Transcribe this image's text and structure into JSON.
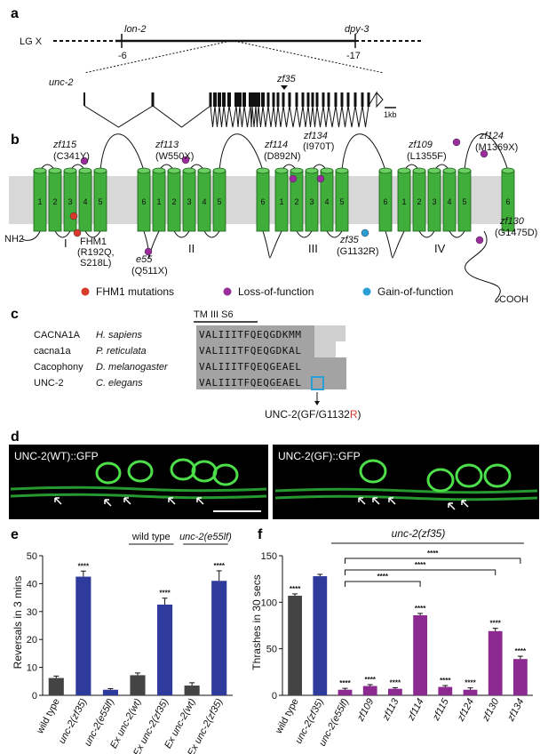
{
  "panels": {
    "a": "a",
    "b": "b",
    "c": "c",
    "d": "d",
    "e": "e",
    "f": "f"
  },
  "panel_a": {
    "chromosome": "LG X",
    "lon2": "lon-2",
    "lon2_pos": "-6",
    "dpy3": "dpy-3",
    "dpy3_pos": "-17",
    "gene": "unc-2",
    "allele": "zf35",
    "scale": "1kb"
  },
  "panel_b": {
    "nh2": "NH2",
    "cooh": "COOH",
    "domains": [
      "I",
      "II",
      "III",
      "IV"
    ],
    "segments": [
      "1",
      "2",
      "3",
      "4",
      "5",
      "6"
    ],
    "fhm1_name": "FHM1",
    "fhm1_mut1": "(R192Q,",
    "fhm1_mut2": "S218L)",
    "mutants": [
      {
        "name": "zf115",
        "aa": "(C341Y)"
      },
      {
        "name": "zf113",
        "aa": "(W550X)"
      },
      {
        "name": "e55",
        "aa": "(Q511X)"
      },
      {
        "name": "zf114",
        "aa": "(D892N)"
      },
      {
        "name": "zf134",
        "aa": "(I970T)"
      },
      {
        "name": "zf35",
        "aa": "(G1132R)"
      },
      {
        "name": "zf109",
        "aa": "(L1355F)"
      },
      {
        "name": "zf124",
        "aa": "(M1369X)"
      },
      {
        "name": "zf130",
        "aa": "(G1475D)"
      }
    ],
    "legend": [
      {
        "label": "FHM1 mutations",
        "color": "#d93a2b"
      },
      {
        "label": "Loss-of-function",
        "color": "#9b2c9e"
      },
      {
        "label": "Gain-of-function",
        "color": "#2a9fd6"
      }
    ]
  },
  "panel_c": {
    "header": "TM III S6",
    "rows": [
      {
        "gene": "CACNA1A",
        "species": "H. sapiens",
        "seq": "VALIIITFQEQGDKMM"
      },
      {
        "gene": "cacna1a",
        "species": "P. reticulata",
        "seq": "VALIIITFQEQGDKAL"
      },
      {
        "gene": "Cacophony",
        "species": "D. melanogaster",
        "seq": "VALIIITFQEQGEAEL"
      },
      {
        "gene": "UNC-2",
        "species": "C. elegans",
        "seq": "VALIIITFQEQGEAEL"
      }
    ],
    "annotation_prefix": "UNC-2(GF/G1132",
    "annotation_red": "R",
    "annotation_suffix": ")"
  },
  "panel_d": {
    "left_label": "UNC-2(WT)::GFP",
    "right_label": "UNC-2(GF)::GFP"
  },
  "chart_data": [
    {
      "type": "bar",
      "panel": "e",
      "ylabel": "Reversals in 3 mins",
      "ylim": [
        0,
        50
      ],
      "yticks": [
        "0",
        "10",
        "20",
        "30",
        "40",
        "50"
      ],
      "categories": [
        "wild type",
        "unc-2(zf35)",
        "unc-2(e55lf)",
        "Ex unc-2(wt)",
        "Ex unc-2(zf35)",
        "Ex unc-2(wt)",
        "Ex unc-2(zf35)"
      ],
      "values": [
        6.2,
        42.5,
        2.0,
        7.2,
        32.5,
        3.5,
        41.0
      ],
      "errors": [
        0.7,
        2.0,
        0.4,
        0.8,
        2.3,
        1.0,
        3.6
      ],
      "colors": [
        "#444444",
        "#2e3b9c",
        "#2e3b9c",
        "#444444",
        "#2e3b9c",
        "#444444",
        "#2e3b9c"
      ],
      "sig": [
        "",
        "****",
        "",
        "",
        "****",
        "",
        "****"
      ],
      "group_labels": [
        {
          "label": "wild type",
          "from": 3,
          "to": 4
        },
        {
          "label": "unc-2(e55lf)",
          "from": 5,
          "to": 6
        }
      ]
    },
    {
      "type": "bar",
      "panel": "f",
      "title": "unc-2(zf35)",
      "ylabel": "Thrashes in 30 secs",
      "ylim": [
        0,
        150
      ],
      "yticks": [
        "0",
        "50",
        "100",
        "150"
      ],
      "categories": [
        "wild type",
        "unc-2(zf35)",
        "unc-2(e55lf)",
        "zf109",
        "zf113",
        "zf114",
        "zf115",
        "zf124",
        "zf130",
        "zf134"
      ],
      "values": [
        107,
        128,
        6,
        10,
        7,
        86,
        9,
        6,
        69,
        39
      ],
      "errors": [
        2,
        2,
        1.5,
        1.5,
        1.2,
        2,
        1.5,
        2,
        3,
        3
      ],
      "colors": [
        "#444444",
        "#2e3b9c",
        "#8c2a92",
        "#8c2a92",
        "#8c2a92",
        "#8c2a92",
        "#8c2a92",
        "#8c2a92",
        "#8c2a92",
        "#8c2a92"
      ],
      "sig": [
        "****",
        "",
        "****",
        "****",
        "****",
        "****",
        "****",
        "****",
        "****",
        "****"
      ],
      "brackets": [
        {
          "from": 2,
          "to": 5,
          "label": "****"
        },
        {
          "from": 2,
          "to": 8,
          "label": "****"
        },
        {
          "from": 2,
          "to": 9,
          "label": "****"
        }
      ]
    }
  ]
}
